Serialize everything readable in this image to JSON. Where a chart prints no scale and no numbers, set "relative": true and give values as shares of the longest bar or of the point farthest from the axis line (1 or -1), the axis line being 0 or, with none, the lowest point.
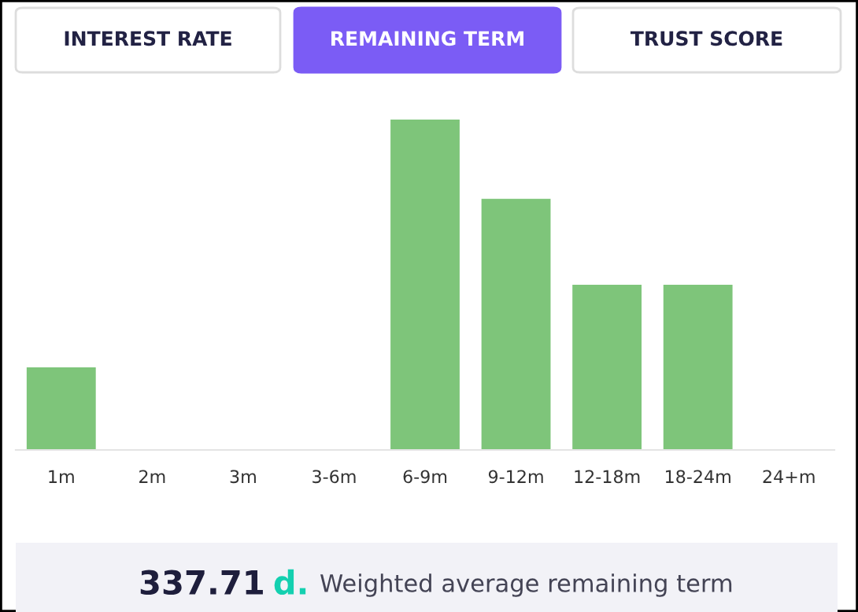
{
  "chart_data": {
    "type": "bar",
    "relative": true,
    "categories": [
      "1m",
      "2m",
      "3m",
      "3-6m",
      "6-9m",
      "9-12m",
      "12-18m",
      "18-24m",
      "24+m"
    ],
    "values": [
      0.25,
      0,
      0,
      0,
      1,
      0.76,
      0.5,
      0.5,
      0
    ],
    "color": "#7ec57a",
    "grid": false,
    "legend": false,
    "annotations": [
      "INTEREST RATE",
      "REMAINING TERM",
      "TRUST SCORE",
      "337.71",
      "d.",
      "Weighted average remaining term"
    ]
  }
}
